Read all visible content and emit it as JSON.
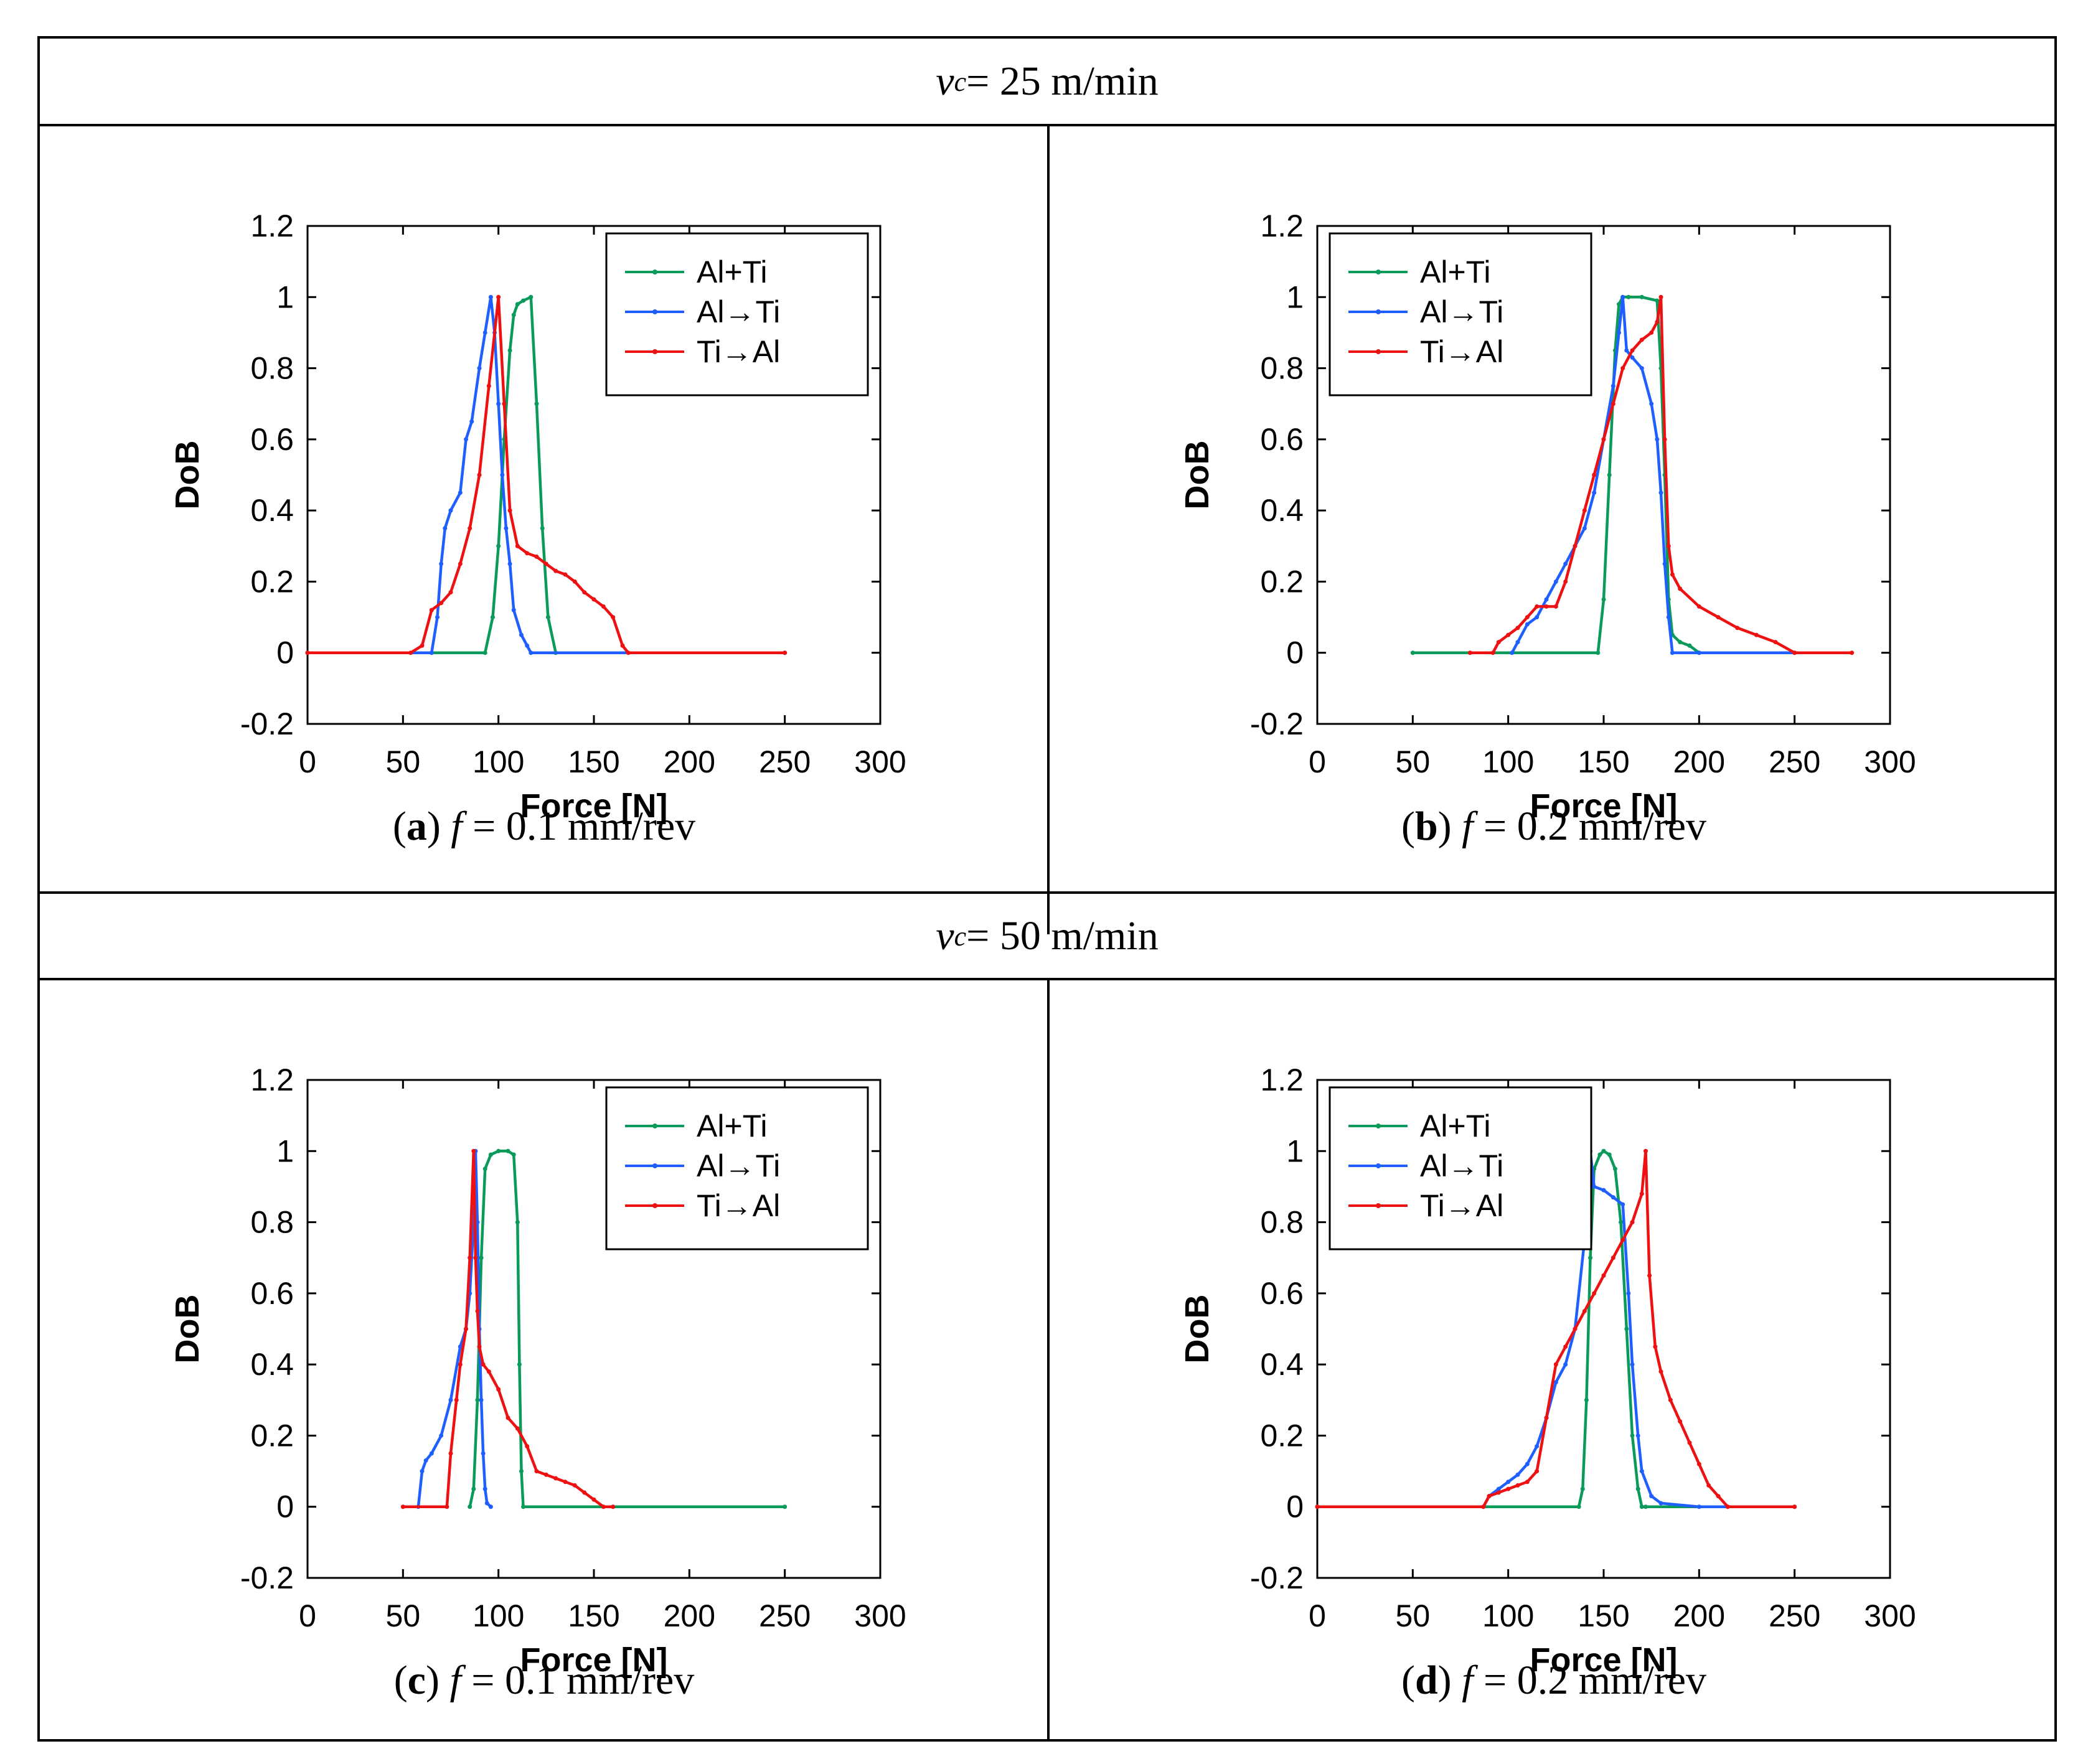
{
  "headers": [
    {
      "var": "v",
      "sub": "c",
      "rest": " = 25 m/min"
    },
    {
      "var": "v",
      "sub": "c",
      "rest": " = 50 m/min"
    }
  ],
  "colors": {
    "Al+Ti": "#0a9a5a",
    "Al→Ti": "#1f5fff",
    "Ti→Al": "#ee1111"
  },
  "chart_data": [
    {
      "type": "line",
      "panel": "a",
      "caption": {
        "letter": "a",
        "var": "f",
        "rest": " = 0.1 mm/rev"
      },
      "xlabel": "Force [N]",
      "ylabel": "DoB",
      "xlim": [
        0,
        300
      ],
      "ylim": [
        -0.2,
        1.2
      ],
      "xticks": [
        "0",
        "50",
        "100",
        "150",
        "200",
        "250",
        "300"
      ],
      "yticks": [
        "1.2",
        "1",
        "0.8",
        "0.6",
        "0.4",
        "0.2",
        "0",
        "-0.2"
      ],
      "legend": [
        "Al+Ti",
        "Al→Ti",
        "Ti→Al"
      ],
      "legend_position": "top-right",
      "series": [
        {
          "name": "Al+Ti",
          "x": [
            0,
            93,
            97,
            100,
            103,
            106,
            108,
            110,
            113,
            117,
            120,
            123,
            126,
            130,
            250
          ],
          "y": [
            0,
            0,
            0.1,
            0.3,
            0.6,
            0.85,
            0.95,
            0.98,
            0.99,
            1.0,
            0.7,
            0.35,
            0.1,
            0,
            0
          ]
        },
        {
          "name": "Al→Ti",
          "x": [
            0,
            65,
            68,
            70,
            72,
            75,
            80,
            83,
            86,
            90,
            93,
            96,
            98,
            100,
            102,
            104,
            106,
            108,
            112,
            115,
            117,
            250
          ],
          "y": [
            0,
            0,
            0.1,
            0.25,
            0.35,
            0.4,
            0.45,
            0.6,
            0.65,
            0.8,
            0.9,
            1.0,
            0.9,
            0.7,
            0.5,
            0.35,
            0.25,
            0.12,
            0.05,
            0.02,
            0,
            0
          ]
        },
        {
          "name": "Ti→Al",
          "x": [
            0,
            54,
            60,
            65,
            70,
            75,
            80,
            85,
            90,
            95,
            100,
            103,
            106,
            110,
            115,
            120,
            125,
            130,
            135,
            140,
            145,
            150,
            155,
            160,
            165,
            168,
            250
          ],
          "y": [
            0,
            0,
            0.02,
            0.12,
            0.14,
            0.17,
            0.25,
            0.35,
            0.5,
            0.75,
            1.0,
            0.7,
            0.4,
            0.3,
            0.28,
            0.27,
            0.25,
            0.23,
            0.22,
            0.2,
            0.17,
            0.15,
            0.13,
            0.1,
            0.02,
            0,
            0
          ]
        }
      ]
    },
    {
      "type": "line",
      "panel": "b",
      "caption": {
        "letter": "b",
        "var": "f",
        "rest": " = 0.2 mm/rev"
      },
      "xlabel": "Force [N]",
      "ylabel": "DoB",
      "xlim": [
        0,
        300
      ],
      "ylim": [
        -0.2,
        1.2
      ],
      "xticks": [
        "0",
        "50",
        "100",
        "150",
        "200",
        "250",
        "300"
      ],
      "yticks": [
        "1.2",
        "1",
        "0.8",
        "0.6",
        "0.4",
        "0.2",
        "0",
        "-0.2"
      ],
      "legend": [
        "Al+Ti",
        "Al→Ti",
        "Ti→Al"
      ],
      "legend_position": "top-left",
      "series": [
        {
          "name": "Al+Ti",
          "x": [
            50,
            147,
            150,
            153,
            156,
            158,
            160,
            163,
            170,
            178,
            180,
            182,
            184,
            186,
            190,
            195,
            200
          ],
          "y": [
            0,
            0,
            0.15,
            0.5,
            0.85,
            0.98,
            1.0,
            1.0,
            1.0,
            0.99,
            0.8,
            0.5,
            0.15,
            0.05,
            0.03,
            0.02,
            0
          ]
        },
        {
          "name": "Al→Ti",
          "x": [
            102,
            105,
            110,
            115,
            120,
            125,
            130,
            135,
            140,
            145,
            150,
            155,
            158,
            160,
            162,
            165,
            170,
            175,
            178,
            180,
            182,
            184,
            186,
            200,
            250
          ],
          "y": [
            0,
            0.03,
            0.08,
            0.1,
            0.15,
            0.2,
            0.25,
            0.3,
            0.35,
            0.45,
            0.6,
            0.75,
            0.9,
            1.0,
            0.85,
            0.83,
            0.8,
            0.7,
            0.6,
            0.45,
            0.25,
            0.1,
            0,
            0,
            0
          ]
        },
        {
          "name": "Ti→Al",
          "x": [
            80,
            92,
            95,
            100,
            105,
            110,
            115,
            120,
            125,
            130,
            135,
            140,
            145,
            150,
            155,
            160,
            165,
            170,
            175,
            178,
            180,
            182,
            184,
            186,
            190,
            200,
            210,
            220,
            230,
            240,
            250,
            280
          ],
          "y": [
            0,
            0,
            0.03,
            0.05,
            0.07,
            0.1,
            0.13,
            0.13,
            0.13,
            0.2,
            0.3,
            0.4,
            0.5,
            0.6,
            0.7,
            0.8,
            0.85,
            0.88,
            0.9,
            0.93,
            1.0,
            0.6,
            0.3,
            0.22,
            0.18,
            0.13,
            0.1,
            0.07,
            0.05,
            0.03,
            0,
            0
          ]
        }
      ]
    },
    {
      "type": "line",
      "panel": "c",
      "caption": {
        "letter": "c",
        "var": "f",
        "rest": " = 0.1 mm/rev"
      },
      "xlabel": "Force [N]",
      "ylabel": "DoB",
      "xlim": [
        0,
        300
      ],
      "ylim": [
        -0.2,
        1.2
      ],
      "xticks": [
        "0",
        "50",
        "100",
        "150",
        "200",
        "250",
        "300"
      ],
      "yticks": [
        "1.2",
        "1",
        "0.8",
        "0.6",
        "0.4",
        "0.2",
        "0",
        "-0.2"
      ],
      "legend": [
        "Al+Ti",
        "Al→Ti",
        "Ti→Al"
      ],
      "legend_position": "top-right",
      "series": [
        {
          "name": "Al+Ti",
          "x": [
            85,
            87,
            89,
            91,
            93,
            96,
            100,
            105,
            108,
            110,
            111,
            112,
            113,
            250
          ],
          "y": [
            0,
            0.05,
            0.3,
            0.7,
            0.95,
            0.99,
            1.0,
            1.0,
            0.99,
            0.8,
            0.4,
            0.1,
            0,
            0
          ]
        },
        {
          "name": "Al→Ti",
          "x": [
            58,
            60,
            62,
            65,
            70,
            75,
            80,
            83,
            85,
            87,
            88,
            89,
            90,
            91,
            92,
            93,
            94,
            96
          ],
          "y": [
            0,
            0.1,
            0.13,
            0.15,
            0.2,
            0.3,
            0.45,
            0.5,
            0.6,
            0.8,
            1.0,
            0.8,
            0.5,
            0.3,
            0.15,
            0.05,
            0.01,
            0
          ]
        },
        {
          "name": "Ti→Al",
          "x": [
            50,
            73,
            75,
            78,
            80,
            83,
            85,
            87,
            88,
            89,
            90,
            92,
            95,
            100,
            105,
            110,
            115,
            120,
            125,
            130,
            135,
            140,
            145,
            150,
            155,
            160
          ],
          "y": [
            0,
            0,
            0.15,
            0.3,
            0.4,
            0.5,
            0.7,
            1.0,
            0.7,
            0.55,
            0.45,
            0.4,
            0.38,
            0.33,
            0.25,
            0.22,
            0.17,
            0.1,
            0.09,
            0.08,
            0.07,
            0.06,
            0.04,
            0.02,
            0,
            0
          ]
        }
      ]
    },
    {
      "type": "line",
      "panel": "d",
      "caption": {
        "letter": "d",
        "var": "f",
        "rest": " = 0.2 mm/rev"
      },
      "xlabel": "Force [N]",
      "ylabel": "DoB",
      "xlim": [
        0,
        300
      ],
      "ylim": [
        -0.2,
        1.2
      ],
      "xticks": [
        "0",
        "50",
        "100",
        "150",
        "200",
        "250",
        "300"
      ],
      "yticks": [
        "1.2",
        "1",
        "0.8",
        "0.6",
        "0.4",
        "0.2",
        "0",
        "-0.2"
      ],
      "legend": [
        "Al+Ti",
        "Al→Ti",
        "Ti→Al"
      ],
      "legend_position": "top-left",
      "series": [
        {
          "name": "Al+Ti",
          "x": [
            0,
            137,
            139,
            141,
            143,
            145,
            148,
            150,
            153,
            156,
            159,
            162,
            165,
            168,
            170,
            172,
            250
          ],
          "y": [
            0,
            0,
            0.05,
            0.3,
            0.7,
            0.95,
            0.99,
            1.0,
            0.99,
            0.95,
            0.8,
            0.5,
            0.2,
            0.05,
            0,
            0,
            0
          ]
        },
        {
          "name": "Al→Ti",
          "x": [
            87,
            90,
            95,
            100,
            105,
            110,
            115,
            120,
            125,
            130,
            135,
            140,
            143,
            145,
            150,
            155,
            160,
            163,
            165,
            168,
            170,
            175,
            180,
            200,
            215
          ],
          "y": [
            0,
            0.03,
            0.05,
            0.07,
            0.09,
            0.12,
            0.17,
            0.25,
            0.35,
            0.4,
            0.5,
            0.75,
            1.0,
            0.9,
            0.89,
            0.87,
            0.85,
            0.6,
            0.4,
            0.2,
            0.1,
            0.03,
            0.01,
            0,
            0
          ]
        },
        {
          "name": "Ti→Al",
          "x": [
            0,
            87,
            90,
            95,
            100,
            105,
            110,
            115,
            120,
            125,
            130,
            135,
            140,
            145,
            150,
            155,
            160,
            165,
            170,
            172,
            174,
            177,
            180,
            185,
            190,
            195,
            200,
            205,
            210,
            215,
            250
          ],
          "y": [
            0,
            0,
            0.03,
            0.04,
            0.05,
            0.06,
            0.07,
            0.1,
            0.25,
            0.4,
            0.45,
            0.5,
            0.55,
            0.6,
            0.65,
            0.7,
            0.75,
            0.8,
            0.88,
            1.0,
            0.65,
            0.45,
            0.38,
            0.3,
            0.24,
            0.18,
            0.12,
            0.06,
            0.03,
            0,
            0
          ]
        }
      ]
    }
  ]
}
